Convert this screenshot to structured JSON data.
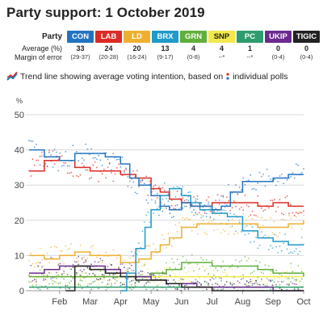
{
  "title": "Party support: 1 October 2019",
  "table": {
    "party_label": "Party",
    "average_label": "Average (%)",
    "moe_label": "Margin of error",
    "parties": [
      {
        "name": "CON",
        "color": "#2273c2",
        "average": "33",
        "moe": "(29-37)"
      },
      {
        "name": "LAB",
        "color": "#dc2b26",
        "average": "24",
        "moe": "(20-28)"
      },
      {
        "name": "LD",
        "color": "#eeb031",
        "average": "20",
        "moe": "(16-24)"
      },
      {
        "name": "BRX",
        "color": "#1f9ac9",
        "average": "13",
        "moe": "(9-17)"
      },
      {
        "name": "GRN",
        "color": "#5faf3a",
        "average": "4",
        "moe": "(0-8)"
      },
      {
        "name": "SNP",
        "color": "#f2e84a",
        "average": "4",
        "moe": "--*"
      },
      {
        "name": "PC",
        "color": "#2e9c6e",
        "average": "1",
        "moe": "--*"
      },
      {
        "name": "UKIP",
        "color": "#6b2a90",
        "average": "0",
        "moe": "(0-4)"
      },
      {
        "name": "TIGIC",
        "color": "#222222",
        "average": "0",
        "moe": "(0-4)"
      }
    ]
  },
  "legend": {
    "part1": "Trend line showing average voting intention, based on",
    "part2": "individual polls"
  },
  "chart_data": {
    "type": "line",
    "ylabel": "%",
    "ylim": [
      0,
      50
    ],
    "yticks": [
      0,
      10,
      20,
      30,
      40,
      50
    ],
    "xlim": [
      0,
      9
    ],
    "xticks": [
      {
        "label": "Feb",
        "x": 1
      },
      {
        "label": "Mar",
        "x": 2
      },
      {
        "label": "Apr",
        "x": 3
      },
      {
        "label": "May",
        "x": 4
      },
      {
        "label": "Jun",
        "x": 5
      },
      {
        "label": "Jul",
        "x": 6
      },
      {
        "label": "Aug",
        "x": 7
      },
      {
        "label": "Sep",
        "x": 8
      },
      {
        "label": "Oct",
        "x": 9
      }
    ],
    "grid": true,
    "series": [
      {
        "name": "CON",
        "color": "#2273c2",
        "x": [
          0,
          0.5,
          1,
          1.5,
          2,
          2.5,
          3,
          3.3,
          3.6,
          4,
          4.3,
          4.6,
          5,
          5.3,
          5.6,
          6,
          6.3,
          6.6,
          7,
          7.5,
          8,
          8.5,
          9
        ],
        "y": [
          40,
          38,
          37,
          39,
          39,
          38,
          36,
          32,
          30,
          27,
          24,
          23,
          25,
          24,
          24,
          23,
          24,
          28,
          31,
          31,
          32,
          33,
          33
        ]
      },
      {
        "name": "LAB",
        "color": "#dc2b26",
        "x": [
          0,
          0.5,
          1,
          1.5,
          2,
          2.5,
          3,
          3.5,
          4,
          4.3,
          4.6,
          5,
          5.3,
          5.6,
          6,
          6.5,
          7,
          7.5,
          8,
          8.5,
          9
        ],
        "y": [
          34,
          37,
          37,
          35,
          34,
          34,
          33,
          32,
          29,
          28,
          26,
          25,
          24,
          24,
          25,
          25,
          25,
          24,
          25,
          24,
          24
        ]
      },
      {
        "name": "LD",
        "color": "#eeb031",
        "x": [
          0,
          0.5,
          1,
          1.5,
          2,
          2.5,
          3,
          3.3,
          3.6,
          4,
          4.3,
          4.6,
          5,
          5.5,
          6,
          6.5,
          7,
          7.5,
          8,
          8.5,
          9
        ],
        "y": [
          10,
          9,
          10,
          11,
          10,
          10,
          8,
          8,
          9,
          11,
          13,
          15,
          18,
          19,
          19,
          19,
          19,
          18,
          18,
          19,
          20
        ]
      },
      {
        "name": "BRX",
        "color": "#1f9ac9",
        "x": [
          3,
          3.2,
          3.5,
          3.8,
          4,
          4.3,
          4.6,
          5,
          5.3,
          5.6,
          6,
          6.5,
          7,
          7.5,
          8,
          8.5,
          9
        ],
        "y": [
          0,
          5,
          12,
          18,
          23,
          27,
          29,
          27,
          25,
          23,
          22,
          21,
          17,
          15,
          14,
          13,
          13
        ]
      },
      {
        "name": "GRN",
        "color": "#5faf3a",
        "x": [
          0,
          1,
          2,
          3,
          3.5,
          4,
          4.5,
          5,
          5.5,
          6,
          6.5,
          7,
          7.5,
          8,
          8.5,
          9
        ],
        "y": [
          4,
          4,
          4,
          4,
          4,
          5,
          6,
          8,
          8,
          7,
          7,
          7,
          6,
          5,
          5,
          4
        ]
      },
      {
        "name": "SNP",
        "color": "#f2e84a",
        "x": [
          0,
          1,
          2,
          3,
          4,
          5,
          6,
          7,
          8,
          9
        ],
        "y": [
          4,
          4,
          4,
          4,
          4,
          4,
          4,
          4,
          4,
          4
        ]
      },
      {
        "name": "PC",
        "color": "#2e9c6e",
        "x": [
          0,
          1,
          2,
          3,
          4,
          5,
          6,
          7,
          8,
          9
        ],
        "y": [
          1,
          1,
          1,
          1,
          1,
          1,
          1,
          1,
          1,
          1
        ]
      },
      {
        "name": "UKIP",
        "color": "#6b2a90",
        "x": [
          0,
          0.5,
          1,
          1.5,
          2,
          2.5,
          3,
          3.5,
          4,
          4.5,
          5,
          5.5,
          6,
          7,
          8,
          9
        ],
        "y": [
          5,
          6,
          7,
          7,
          7,
          6,
          5,
          4,
          3,
          2,
          2,
          1,
          1,
          1,
          0,
          0
        ]
      },
      {
        "name": "TIGIC",
        "color": "#222222",
        "x": [
          1.2,
          1.5,
          2,
          2.5,
          3,
          3.5,
          4,
          4.5,
          5,
          5.5,
          6,
          7,
          8,
          9
        ],
        "y": [
          0,
          7,
          6,
          5,
          4,
          3,
          3,
          2,
          1,
          1,
          0,
          0,
          0,
          0
        ]
      }
    ]
  }
}
